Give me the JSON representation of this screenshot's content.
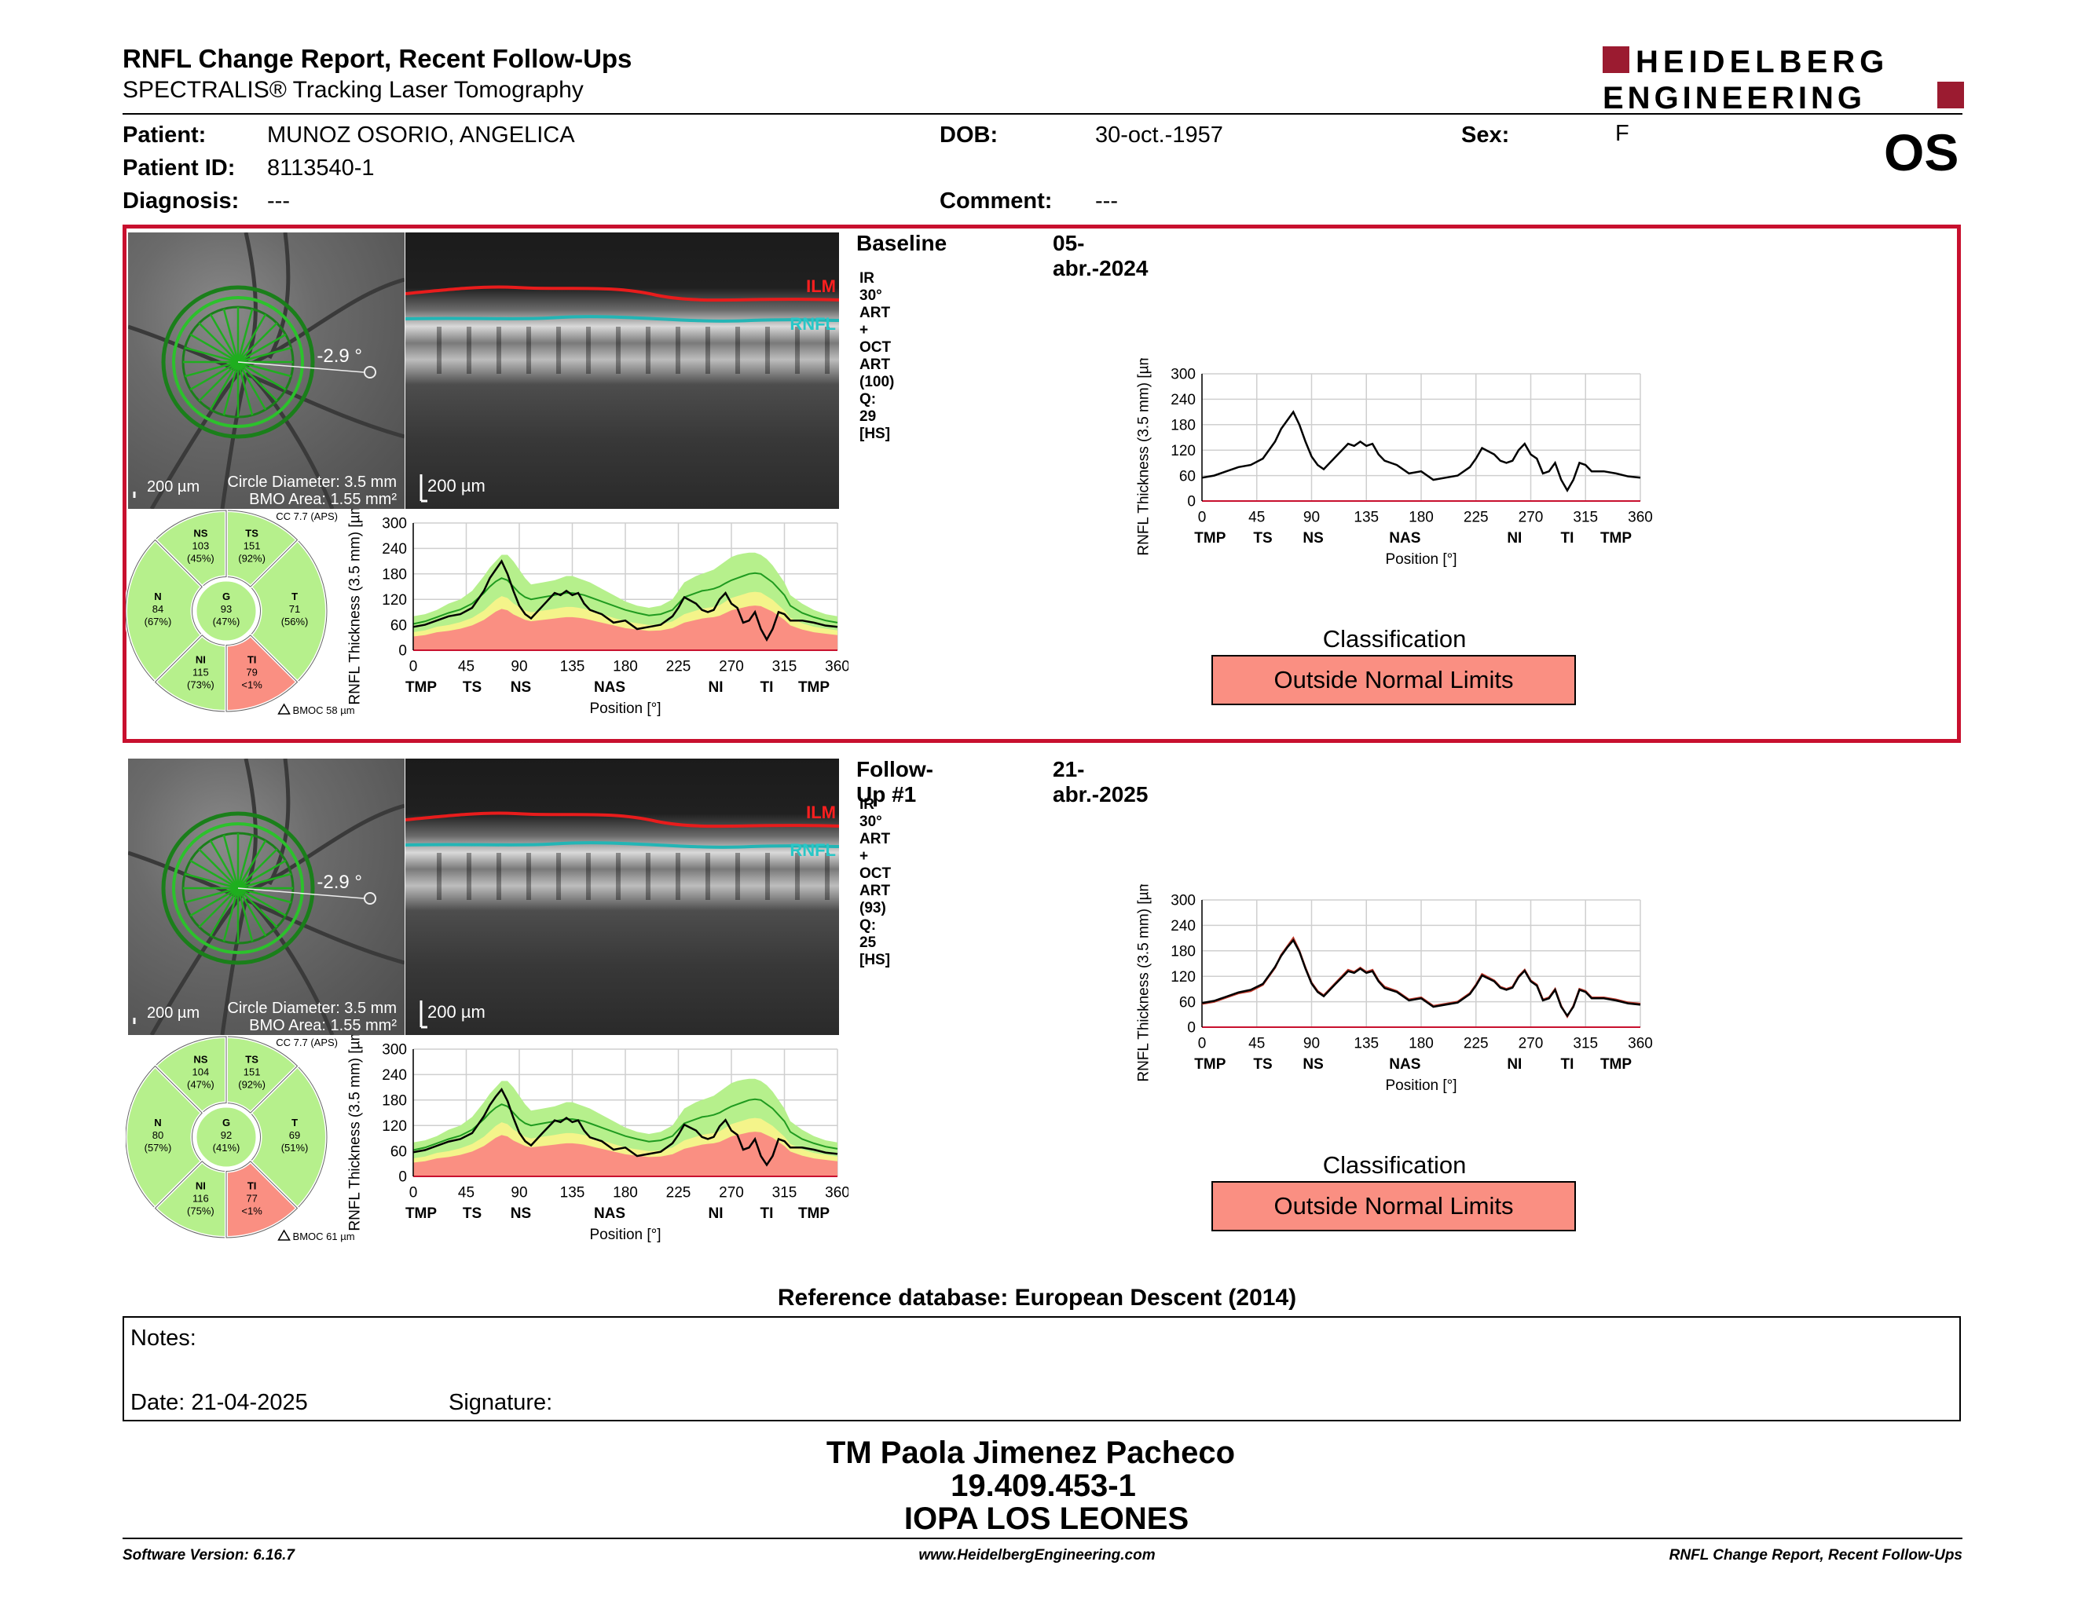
{
  "header": {
    "title": "RNFL Change Report, Recent Follow-Ups",
    "subtitle": "SPECTRALIS® Tracking Laser Tomography",
    "logo_line1": "HEIDELBERG",
    "logo_line2": "ENGINEERING",
    "eye": "OS"
  },
  "patient": {
    "patient_label": "Patient:",
    "patient_value": "MUNOZ OSORIO, ANGELICA",
    "id_label": "Patient ID:",
    "id_value": "8113540-1",
    "diagnosis_label": "Diagnosis:",
    "diagnosis_value": "---",
    "dob_label": "DOB:",
    "dob_value": "30-oct.-1957",
    "comment_label": "Comment:",
    "comment_value": "---",
    "sex_label": "Sex:",
    "sex_value": "F"
  },
  "colors": {
    "accent_red": "#c8102e",
    "outside_normal": "#fa8f82",
    "within_normal": "#b6f08c",
    "borderline": "#f4f48a",
    "green_line": "#1f9a1f"
  },
  "common": {
    "ilm_label": "ILM",
    "rnfl_label": "RNFL",
    "scale_label": "200 µm",
    "circle_diameter": "Circle Diameter: 3.5 mm",
    "bmo_area": "BMO Area: 1.55 mm²",
    "angle": "-2.9 °",
    "cc_label": "CC 7.7 (APS)",
    "ylabel": "RNFL Thickness (3.5 mm) [µm]",
    "xlabel": "Position [°]",
    "yticks": [
      "300",
      "240",
      "180",
      "120",
      "60",
      "0"
    ],
    "xticks": [
      "0",
      "45",
      "90",
      "135",
      "180",
      "225",
      "270",
      "315",
      "360"
    ],
    "sector_labels": [
      "TMP",
      "TS",
      "NS",
      "NAS",
      "NI",
      "TI",
      "TMP"
    ],
    "classification_title": "Classification"
  },
  "visits": [
    {
      "title": "Baseline",
      "date": "05-abr.-2024",
      "scan_info": "IR 30° ART + OCT ART (100) Q: 29 [HS]",
      "bmoc": "BMOC 58 µm",
      "classification": "Outside Normal Limits",
      "sectors": {
        "NS": {
          "label": "NS",
          "value": "103",
          "pct": "(45%)"
        },
        "TS": {
          "label": "TS",
          "value": "151",
          "pct": "(92%)"
        },
        "N": {
          "label": "N",
          "value": "84",
          "pct": "(67%)"
        },
        "G": {
          "label": "G",
          "value": "93",
          "pct": "(47%)"
        },
        "T": {
          "label": "T",
          "value": "71",
          "pct": "(56%)"
        },
        "NI": {
          "label": "NI",
          "value": "115",
          "pct": "(73%)"
        },
        "TI": {
          "label": "TI",
          "value": "79",
          "pct": "<1%"
        }
      }
    },
    {
      "title": "Follow-Up #1",
      "date": "21-abr.-2025",
      "scan_info": "IR 30° ART + OCT ART (93) Q: 25 [HS]",
      "bmoc": "BMOC 61 µm",
      "classification": "Outside Normal Limits",
      "sectors": {
        "NS": {
          "label": "NS",
          "value": "104",
          "pct": "(47%)"
        },
        "TS": {
          "label": "TS",
          "value": "151",
          "pct": "(92%)"
        },
        "N": {
          "label": "N",
          "value": "80",
          "pct": "(57%)"
        },
        "G": {
          "label": "G",
          "value": "92",
          "pct": "(41%)"
        },
        "T": {
          "label": "T",
          "value": "69",
          "pct": "(51%)"
        },
        "NI": {
          "label": "NI",
          "value": "116",
          "pct": "(75%)"
        },
        "TI": {
          "label": "TI",
          "value": "77",
          "pct": "<1%"
        }
      }
    }
  ],
  "chart_data": {
    "type": "line",
    "xlim": [
      0,
      360
    ],
    "ylim": [
      0,
      300
    ],
    "x": [
      0,
      10,
      20,
      30,
      40,
      50,
      60,
      65,
      70,
      75,
      80,
      85,
      90,
      95,
      100,
      110,
      120,
      125,
      130,
      135,
      140,
      145,
      150,
      160,
      170,
      180,
      190,
      200,
      210,
      220,
      225,
      230,
      240,
      245,
      250,
      255,
      260,
      265,
      270,
      275,
      280,
      285,
      290,
      295,
      300,
      305,
      310,
      315,
      320,
      330,
      340,
      350,
      360
    ],
    "series": [
      {
        "values": [
          55,
          60,
          70,
          80,
          85,
          100,
          140,
          170,
          190,
          210,
          180,
          140,
          105,
          85,
          75,
          105,
          135,
          130,
          140,
          130,
          135,
          110,
          95,
          85,
          65,
          70,
          50,
          55,
          60,
          80,
          100,
          125,
          110,
          95,
          90,
          95,
          120,
          135,
          110,
          100,
          65,
          70,
          90,
          50,
          25,
          50,
          90,
          85,
          70,
          70,
          65,
          58,
          55
        ]
      },
      {
        "values": [
          57,
          62,
          72,
          82,
          88,
          102,
          142,
          168,
          188,
          205,
          178,
          138,
          103,
          83,
          73,
          103,
          132,
          128,
          138,
          128,
          132,
          108,
          92,
          83,
          63,
          68,
          48,
          53,
          58,
          78,
          98,
          122,
          108,
          93,
          88,
          93,
          118,
          133,
          108,
          98,
          63,
          68,
          88,
          48,
          27,
          48,
          88,
          83,
          68,
          68,
          63,
          56,
          53
        ]
      }
    ],
    "normal_band": {
      "lower": [
        50,
        55,
        65,
        70,
        78,
        90,
        110,
        125,
        140,
        150,
        145,
        130,
        120,
        110,
        105,
        110,
        115,
        118,
        120,
        120,
        118,
        115,
        110,
        100,
        90,
        80,
        75,
        70,
        72,
        80,
        90,
        100,
        110,
        115,
        118,
        120,
        125,
        135,
        145,
        150,
        155,
        160,
        162,
        160,
        150,
        140,
        125,
        110,
        90,
        75,
        65,
        60,
        55
      ],
      "upper": [
        80,
        85,
        95,
        110,
        120,
        140,
        175,
        195,
        210,
        225,
        225,
        210,
        190,
        170,
        155,
        160,
        165,
        170,
        175,
        175,
        170,
        165,
        160,
        145,
        130,
        115,
        105,
        100,
        105,
        120,
        140,
        160,
        175,
        180,
        185,
        190,
        200,
        210,
        220,
        225,
        228,
        230,
        230,
        225,
        215,
        200,
        180,
        160,
        130,
        110,
        95,
        85,
        80
      ]
    },
    "mean_line": [
      62,
      68,
      78,
      88,
      96,
      110,
      135,
      150,
      162,
      170,
      165,
      150,
      135,
      125,
      120,
      125,
      130,
      133,
      135,
      135,
      133,
      130,
      125,
      115,
      105,
      95,
      88,
      82,
      85,
      95,
      110,
      125,
      135,
      140,
      142,
      145,
      150,
      158,
      165,
      170,
      175,
      180,
      182,
      180,
      170,
      160,
      145,
      130,
      105,
      88,
      78,
      70,
      65
    ]
  },
  "references": {
    "database": "Reference database: European Descent (2014)"
  },
  "notes": {
    "notes_label": "Notes:",
    "date_label": "Date: 21-04-2025",
    "signature_label": "Signature:"
  },
  "signature": {
    "name": "TM Paola Jimenez Pacheco",
    "rut": "19.409.453-1",
    "institution": "IOPA LOS LEONES"
  },
  "footer": {
    "software": "Software Version: 6.16.7",
    "website": "www.HeidelbergEngineering.com",
    "report": "RNFL Change Report, Recent Follow-Ups"
  }
}
